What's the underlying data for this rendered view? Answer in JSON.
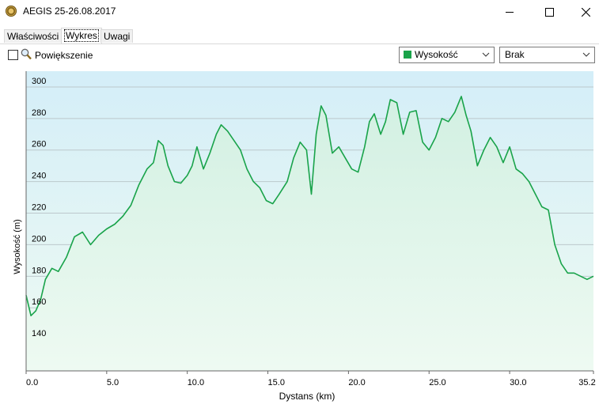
{
  "window": {
    "title": "AEGIS 25-26.08.2017",
    "minimize_glyph": "─",
    "maximize_glyph": "□",
    "close_glyph": "✕"
  },
  "tabs": [
    {
      "label": "Właściwości",
      "active": false
    },
    {
      "label": "Wykres",
      "active": true
    },
    {
      "label": "Uwagi",
      "active": false
    }
  ],
  "toolbar": {
    "zoom_checkbox_checked": false,
    "zoom_label": "Powiększenie",
    "series_select": {
      "value": "Wysokość",
      "color": "#19a34a"
    },
    "second_select": {
      "value": "Brak"
    }
  },
  "chart_data": {
    "type": "area",
    "xlabel": "Dystans  (km)",
    "ylabel": "Wysokość (m)",
    "xlim": [
      0,
      35.2
    ],
    "ylim": [
      120,
      310
    ],
    "x_ticks": [
      "0.0",
      "5.0",
      "10.0",
      "15.0",
      "20.0",
      "25.0",
      "30.0",
      "35.2"
    ],
    "y_ticks": [
      "140",
      "160",
      "180",
      "200",
      "220",
      "240",
      "260",
      "280",
      "300"
    ],
    "grid": true,
    "line_color": "#19a34a",
    "series": [
      {
        "x": [
          0,
          0.3,
          0.6,
          0.9,
          1.2,
          1.6,
          2.0,
          2.5,
          3.0,
          3.5,
          4.0,
          4.5,
          5.0,
          5.5,
          6.0,
          6.5,
          7.0,
          7.5,
          7.9,
          8.2,
          8.5,
          8.8,
          9.2,
          9.6,
          10.0,
          10.3,
          10.6,
          11.0,
          11.4,
          11.8,
          12.1,
          12.5,
          12.9,
          13.3,
          13.7,
          14.1,
          14.5,
          14.9,
          15.3,
          15.7,
          16.2,
          16.6,
          17.0,
          17.4,
          17.7,
          18.0,
          18.3,
          18.6,
          19.0,
          19.4,
          19.8,
          20.2,
          20.6,
          21.0,
          21.3,
          21.6,
          22.0,
          22.3,
          22.6,
          23.0,
          23.4,
          23.8,
          24.2,
          24.6,
          25.0,
          25.4,
          25.8,
          26.2,
          26.6,
          27.0,
          27.3,
          27.6,
          28.0,
          28.4,
          28.8,
          29.2,
          29.6,
          30.0,
          30.4,
          30.8,
          31.2,
          31.6,
          32.0,
          32.4,
          32.8,
          33.2,
          33.6,
          34.0,
          34.4,
          34.8,
          35.2
        ],
        "y": [
          168,
          155,
          158,
          165,
          178,
          185,
          183,
          192,
          205,
          208,
          200,
          206,
          210,
          213,
          218,
          225,
          238,
          248,
          252,
          266,
          263,
          250,
          240,
          239,
          244,
          250,
          262,
          248,
          258,
          270,
          276,
          272,
          266,
          260,
          248,
          240,
          236,
          228,
          226,
          232,
          240,
          255,
          265,
          260,
          232,
          270,
          288,
          282,
          258,
          262,
          255,
          248,
          246,
          262,
          278,
          283,
          270,
          278,
          292,
          290,
          270,
          284,
          285,
          265,
          260,
          268,
          280,
          278,
          284,
          294,
          282,
          272,
          250,
          260,
          268,
          262,
          252,
          262,
          248,
          245,
          240,
          232,
          224,
          222,
          200,
          188,
          182,
          182,
          180,
          178,
          180
        ]
      }
    ]
  }
}
